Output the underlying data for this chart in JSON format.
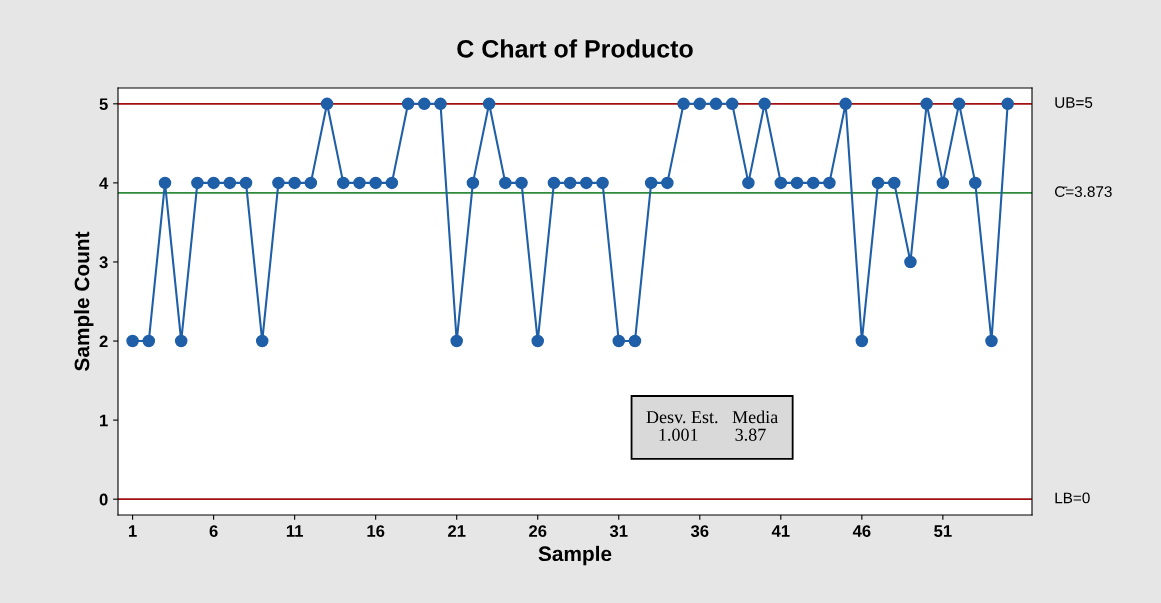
{
  "chart_data": {
    "type": "line",
    "title": "C Chart of Producto",
    "xlabel": "Sample",
    "ylabel": "Sample Count",
    "x": [
      1,
      2,
      3,
      4,
      5,
      6,
      7,
      8,
      9,
      10,
      11,
      12,
      13,
      14,
      15,
      16,
      17,
      18,
      19,
      20,
      21,
      22,
      23,
      24,
      25,
      26,
      27,
      28,
      29,
      30,
      31,
      32,
      33,
      34,
      35,
      36,
      37,
      38,
      39,
      40,
      41,
      42,
      43,
      44,
      45,
      46,
      47,
      48,
      49,
      50,
      51,
      52,
      53,
      54,
      55
    ],
    "series": [
      {
        "color": "#1f5fa8",
        "values": [
          2,
          2,
          4,
          2,
          4,
          4,
          4,
          4,
          2,
          4,
          4,
          4,
          5,
          4,
          4,
          4,
          4,
          5,
          5,
          5,
          2,
          4,
          5,
          4,
          4,
          2,
          4,
          4,
          4,
          4,
          2,
          2,
          4,
          4,
          5,
          5,
          5,
          5,
          4,
          5,
          4,
          4,
          4,
          4,
          5,
          2,
          4,
          4,
          3,
          5,
          4,
          5,
          4,
          2,
          5
        ]
      }
    ],
    "marker": "circle",
    "line_style": "solid",
    "grid": false,
    "legend": false,
    "xlim": [
      0.1,
      56.5
    ],
    "xticks": [
      1,
      6,
      11,
      16,
      21,
      26,
      31,
      36,
      41,
      46,
      51
    ],
    "ylim": [
      -0.2,
      5.2
    ],
    "yticks": [
      0,
      1,
      2,
      3,
      4,
      5
    ],
    "ref_lines": [
      {
        "axis": "y",
        "value": 5,
        "label": "UB=5",
        "color": "#a01010"
      },
      {
        "axis": "y",
        "value": 3.873,
        "label": "C̄=3.873",
        "color": "#2e8b3a"
      },
      {
        "axis": "y",
        "value": 0,
        "label": "LB=0",
        "color": "#a01010"
      }
    ],
    "annotations": [
      "Desv. Est.   Media",
      "1.001        3.87"
    ]
  }
}
